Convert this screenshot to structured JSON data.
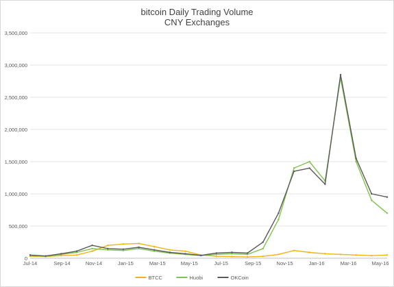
{
  "chart_data": {
    "type": "line",
    "title": "bitcoin Daily Trading Volume",
    "subtitle": "CNY Exchanges",
    "xlabel": "",
    "ylabel": "",
    "ylim": [
      0,
      3500000
    ],
    "y_ticks": [
      "0",
      "500,000",
      "1,000,000",
      "1,500,000",
      "2,000,000",
      "2,500,000",
      "3,000,000",
      "3,500,000"
    ],
    "x_ticks": [
      "Jul-14",
      "Sep-14",
      "Nov-14",
      "Jan-15",
      "Mar-15",
      "May-15",
      "Jul-15",
      "Sep-15",
      "Nov-15",
      "Jan-16",
      "Mar-16",
      "May-16"
    ],
    "grid": "horizontal",
    "legend_position": "bottom",
    "x": [
      "Jul-14",
      "Aug-14",
      "Sep-14",
      "Oct-14",
      "Nov-14",
      "Dec-14",
      "Jan-15",
      "Feb-15",
      "Mar-15",
      "Apr-15",
      "May-15",
      "Jun-15",
      "Jul-15",
      "Aug-15",
      "Sep-15",
      "Oct-15",
      "Nov-15",
      "Dec-15",
      "Jan-16",
      "Feb-16",
      "Mar-16",
      "Apr-16",
      "May-16",
      "Jun-16"
    ],
    "series": [
      {
        "name": "BTCC",
        "color": "#f2b217",
        "values": [
          30000,
          25000,
          40000,
          50000,
          110000,
          200000,
          220000,
          230000,
          180000,
          130000,
          110000,
          50000,
          30000,
          25000,
          20000,
          30000,
          60000,
          120000,
          90000,
          70000,
          60000,
          50000,
          40000,
          50000
        ]
      },
      {
        "name": "Huobi",
        "color": "#7dc34a",
        "values": [
          40000,
          30000,
          60000,
          90000,
          150000,
          130000,
          120000,
          150000,
          110000,
          80000,
          60000,
          40000,
          60000,
          70000,
          60000,
          150000,
          600000,
          1400000,
          1500000,
          1200000,
          2800000,
          1500000,
          900000,
          700000
        ]
      },
      {
        "name": "OKCoin",
        "color": "#595959",
        "values": [
          50000,
          35000,
          70000,
          110000,
          200000,
          150000,
          140000,
          170000,
          130000,
          90000,
          70000,
          45000,
          80000,
          90000,
          80000,
          250000,
          700000,
          1350000,
          1400000,
          1150000,
          2850000,
          1550000,
          1000000,
          950000
        ]
      }
    ]
  }
}
